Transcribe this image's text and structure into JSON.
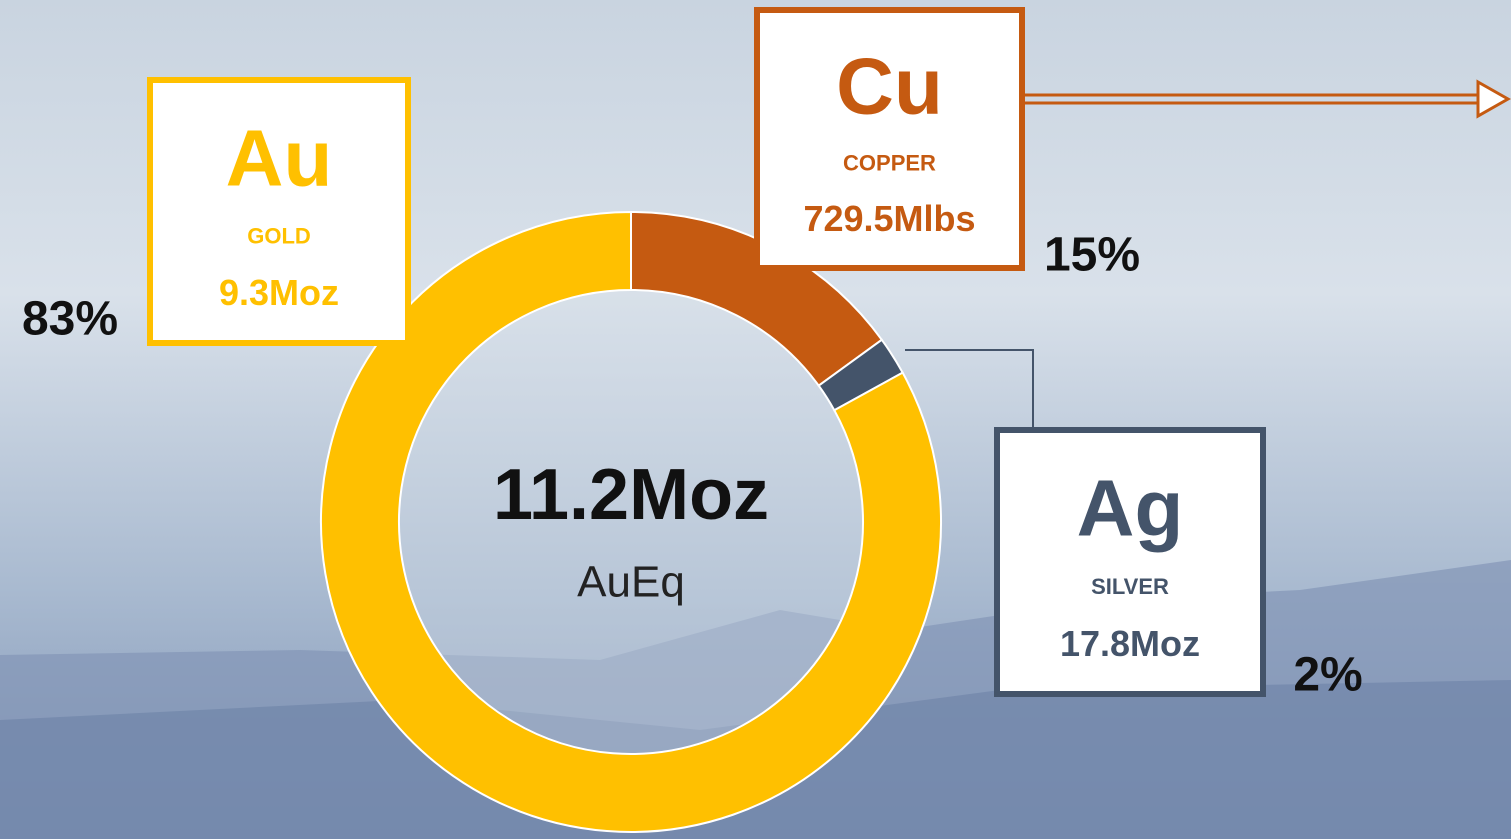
{
  "chart_data": {
    "type": "donut",
    "center_value": "11.2Moz",
    "center_label": "AuEq",
    "categories": [
      "COPPER",
      "SILVER",
      "GOLD"
    ],
    "symbols": [
      "Cu",
      "Ag",
      "Au"
    ],
    "amounts": [
      "729.5Mlbs",
      "17.8Moz",
      "9.3Moz"
    ],
    "values": [
      15,
      2,
      83
    ],
    "value_labels": [
      "15%",
      "2%",
      "83%"
    ],
    "colors": [
      "#c55a11",
      "#44546a",
      "#ffc000"
    ]
  }
}
